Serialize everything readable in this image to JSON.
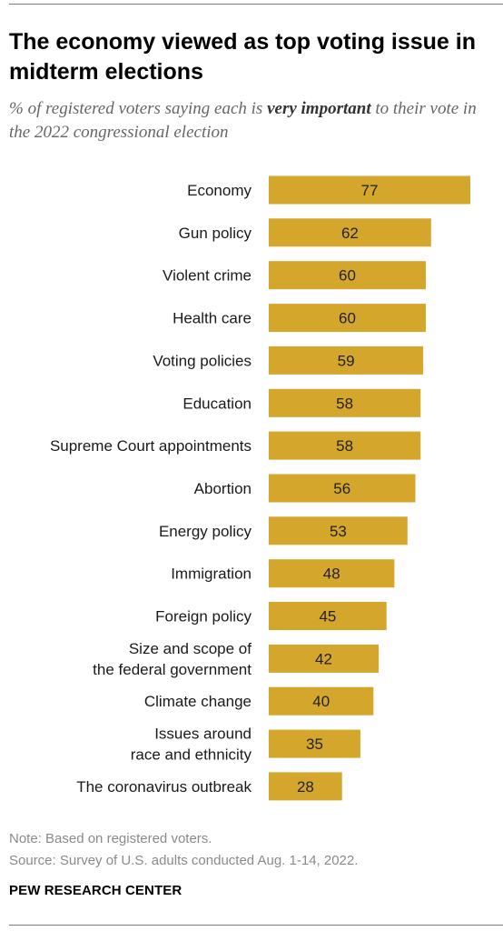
{
  "header": {
    "title": "The economy viewed as top voting issue in midterm elections",
    "subtitle_prefix": "% of registered voters saying each is ",
    "subtitle_emphasis": "very important",
    "subtitle_suffix": " to their vote in the 2022 congressional election"
  },
  "footer": {
    "note": "Note: Based on registered voters.",
    "source": "Source: Survey of U.S. adults conducted Aug. 1-14, 2022.",
    "brand": "PEW RESEARCH CENTER"
  },
  "colors": {
    "bar": "#D4A62C",
    "label": "#1a1a1a",
    "value": "#222222"
  },
  "chart_data": {
    "type": "bar",
    "orientation": "horizontal",
    "categories": [
      [
        "Economy"
      ],
      [
        "Gun policy"
      ],
      [
        "Violent crime"
      ],
      [
        "Health care"
      ],
      [
        "Voting policies"
      ],
      [
        "Education"
      ],
      [
        "Supreme Court appointments"
      ],
      [
        "Abortion"
      ],
      [
        "Energy policy"
      ],
      [
        "Immigration"
      ],
      [
        "Foreign policy"
      ],
      [
        "Size and scope of",
        "the federal government"
      ],
      [
        "Climate change"
      ],
      [
        "Issues around",
        "race and ethnicity"
      ],
      [
        "The coronavirus outbreak"
      ]
    ],
    "values": [
      77,
      62,
      60,
      60,
      59,
      58,
      58,
      56,
      53,
      48,
      45,
      42,
      40,
      35,
      28
    ],
    "xlim": [
      0,
      77
    ],
    "grid": false,
    "legend": "none"
  }
}
